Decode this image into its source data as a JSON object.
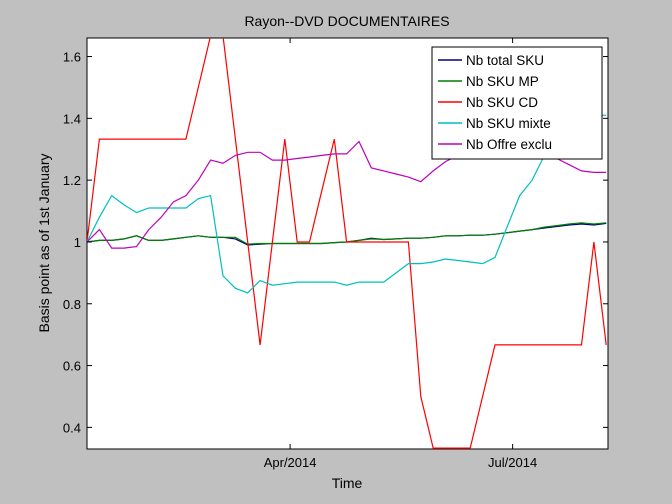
{
  "chart_data": {
    "type": "line",
    "title": "Rayon--DVD DOCUMENTAIRES",
    "xlabel": "Time",
    "ylabel": "Basis point as of 1st January",
    "x": [
      1,
      8,
      15,
      22,
      29,
      36,
      43,
      50,
      57,
      64,
      71,
      78,
      85,
      92,
      99,
      106,
      113,
      120,
      127,
      134,
      141,
      148,
      155,
      162,
      169,
      176,
      183,
      190,
      197,
      204,
      211,
      218,
      225,
      232,
      239,
      246,
      253,
      260,
      267,
      274,
      281,
      288,
      295
    ],
    "xlim": [
      1,
      296
    ],
    "ylim": [
      0.33,
      1.66
    ],
    "x_ticks": [
      {
        "x": 116,
        "label": "Apr/2014"
      },
      {
        "x": 242,
        "label": "Jul/2014"
      }
    ],
    "y_ticks": [
      0.4,
      0.6,
      0.8,
      1,
      1.2,
      1.4,
      1.6
    ],
    "y_tick_labels": [
      "0.4",
      "0.6",
      "0.8",
      "1",
      "1.2",
      "1.4",
      "1.6"
    ],
    "grid": false,
    "legend_position": "top-right",
    "series": [
      {
        "name": "Nb total SKU",
        "color": "#00007f",
        "values": [
          1.0,
          1.005,
          1.005,
          1.01,
          1.02,
          1.005,
          1.005,
          1.01,
          1.015,
          1.02,
          1.015,
          1.015,
          1.01,
          0.99,
          0.993,
          0.995,
          0.995,
          0.995,
          0.995,
          0.995,
          0.998,
          1.0,
          1.005,
          1.012,
          1.008,
          1.01,
          1.012,
          1.012,
          1.015,
          1.02,
          1.02,
          1.022,
          1.022,
          1.025,
          1.03,
          1.035,
          1.04,
          1.045,
          1.05,
          1.055,
          1.058,
          1.055,
          1.06
        ]
      },
      {
        "name": "Nb SKU MP",
        "color": "#007f00",
        "values": [
          1.0,
          1.005,
          1.005,
          1.01,
          1.02,
          1.005,
          1.005,
          1.01,
          1.015,
          1.02,
          1.015,
          1.015,
          1.015,
          0.993,
          0.995,
          0.995,
          0.995,
          0.995,
          0.995,
          0.995,
          0.998,
          1.0,
          1.005,
          1.01,
          1.008,
          1.01,
          1.012,
          1.012,
          1.015,
          1.02,
          1.02,
          1.022,
          1.022,
          1.025,
          1.03,
          1.035,
          1.04,
          1.048,
          1.053,
          1.058,
          1.062,
          1.058,
          1.062
        ]
      },
      {
        "name": "Nb SKU CD",
        "color": "#ff0000",
        "values": [
          1.0,
          1.333,
          1.333,
          1.333,
          1.333,
          1.333,
          1.333,
          1.333,
          1.333,
          1.5,
          1.667,
          1.667,
          1.333,
          1.0,
          0.667,
          1.0,
          1.333,
          1.0,
          1.0,
          1.167,
          1.333,
          1.0,
          1.0,
          1.0,
          1.0,
          1.0,
          1.0,
          0.5,
          0.333,
          0.333,
          0.333,
          0.333,
          0.5,
          0.667,
          0.667,
          0.667,
          0.667,
          0.667,
          0.667,
          0.667,
          0.667,
          1.0,
          0.667
        ]
      },
      {
        "name": "Nb SKU mixte",
        "color": "#00bfbf",
        "values": [
          1.0,
          1.08,
          1.15,
          1.12,
          1.095,
          1.11,
          1.11,
          1.11,
          1.11,
          1.14,
          1.15,
          0.89,
          0.85,
          0.835,
          0.875,
          0.86,
          0.865,
          0.87,
          0.87,
          0.87,
          0.87,
          0.86,
          0.87,
          0.87,
          0.87,
          0.9,
          0.93,
          0.93,
          0.935,
          0.945,
          0.94,
          0.935,
          0.93,
          0.95,
          1.05,
          1.15,
          1.2,
          1.28,
          1.35,
          1.4,
          1.41,
          1.41,
          1.41
        ]
      },
      {
        "name": "Nb Offre exclu",
        "color": "#bf00bf",
        "values": [
          1.0,
          1.04,
          0.98,
          0.98,
          0.985,
          1.04,
          1.08,
          1.13,
          1.15,
          1.2,
          1.265,
          1.255,
          1.28,
          1.29,
          1.29,
          1.265,
          1.265,
          1.27,
          1.275,
          1.28,
          1.285,
          1.285,
          1.325,
          1.24,
          1.23,
          1.22,
          1.21,
          1.195,
          1.23,
          1.26,
          1.28,
          1.3,
          1.32,
          1.33,
          1.34,
          1.33,
          1.32,
          1.29,
          1.27,
          1.25,
          1.23,
          1.225,
          1.225
        ]
      }
    ]
  }
}
